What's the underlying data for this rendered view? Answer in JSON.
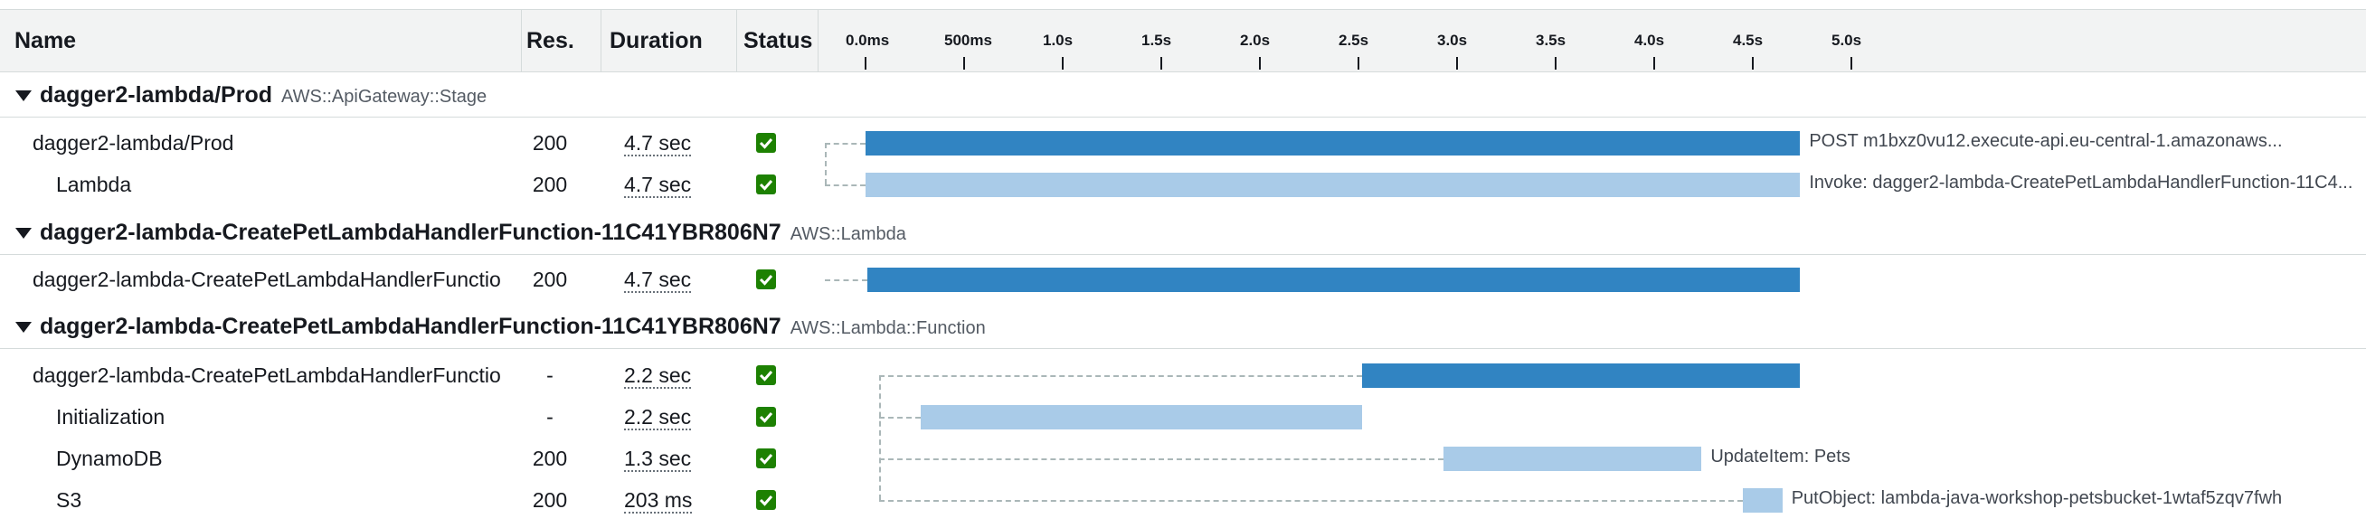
{
  "columns": {
    "name": "Name",
    "res": "Res.",
    "duration": "Duration",
    "status": "Status"
  },
  "timeline_ticks": [
    "0.0ms",
    "500ms",
    "1.0s",
    "1.5s",
    "2.0s",
    "2.5s",
    "3.0s",
    "3.5s",
    "4.0s",
    "4.5s",
    "5.0s"
  ],
  "colors": {
    "bar_primary": "#3184c2",
    "bar_secondary": "#a9cbe8",
    "status_ok": "#1d8102"
  },
  "groups": [
    {
      "title": "dagger2-lambda/Prod",
      "type": "AWS::ApiGateway::Stage",
      "rows": [
        {
          "name": "dagger2-lambda/Prod",
          "res": "200",
          "duration": "4.7 sec",
          "start_s": 0.0,
          "end_s": 4.74,
          "bar": "primary",
          "label": "POST m1bxz0vu12.execute-api.eu-central-1.amazonaws..."
        },
        {
          "name": "Lambda",
          "res": "200",
          "duration": "4.7 sec",
          "start_s": 0.0,
          "end_s": 4.74,
          "bar": "secondary",
          "label": "Invoke: dagger2-lambda-CreatePetLambdaHandlerFunction-11C4..."
        }
      ]
    },
    {
      "title": "dagger2-lambda-CreatePetLambdaHandlerFunction-11C41YBR806N7",
      "type": "AWS::Lambda",
      "rows": [
        {
          "name": "dagger2-lambda-CreatePetLambdaHandlerFunctio",
          "res": "200",
          "duration": "4.7 sec",
          "start_s": 0.01,
          "end_s": 4.74,
          "bar": "primary",
          "label": ""
        }
      ]
    },
    {
      "title": "dagger2-lambda-CreatePetLambdaHandlerFunction-11C41YBR806N7",
      "type": "AWS::Lambda::Function",
      "rows": [
        {
          "name": "dagger2-lambda-CreatePetLambdaHandlerFunctio",
          "res": "-",
          "duration": "2.2 sec",
          "start_s": 2.52,
          "end_s": 4.74,
          "bar": "primary",
          "label": ""
        },
        {
          "name": "Initialization",
          "res": "-",
          "duration": "2.2 sec",
          "start_s": 0.28,
          "end_s": 2.52,
          "bar": "secondary",
          "label": ""
        },
        {
          "name": "DynamoDB",
          "res": "200",
          "duration": "1.3 sec",
          "start_s": 2.93,
          "end_s": 4.24,
          "bar": "secondary",
          "label": "UpdateItem: Pets"
        },
        {
          "name": "S3",
          "res": "200",
          "duration": "203 ms",
          "start_s": 4.45,
          "end_s": 4.65,
          "bar": "secondary",
          "label": "PutObject: lambda-java-workshop-petsbucket-1wtaf5zqv7fwh"
        }
      ]
    }
  ]
}
